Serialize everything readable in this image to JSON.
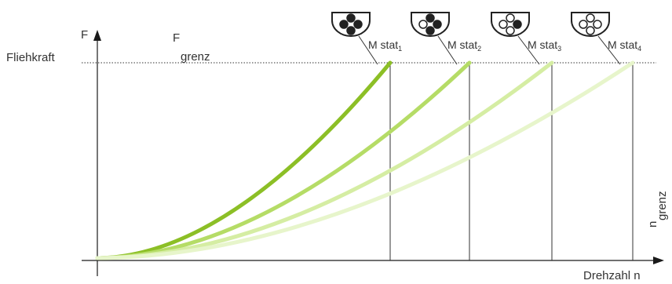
{
  "labels": {
    "y_axis_left": "Fliehkraft",
    "y_axis_symbol": "F",
    "f_limit_main": "F",
    "f_limit_sub": "grenz",
    "x_axis": "Drehzahl n",
    "n_limit_main": "n",
    "n_limit_sub": "grenz"
  },
  "curves": [
    {
      "main": "M stat",
      "sub": "1",
      "color": "#8cbf26",
      "icon_fill": [
        true,
        true,
        true,
        true
      ]
    },
    {
      "main": "M stat",
      "sub": "2",
      "color": "#b5dc66",
      "icon_fill": [
        true,
        false,
        true,
        true
      ]
    },
    {
      "main": "M stat",
      "sub": "3",
      "color": "#d5eda3",
      "icon_fill": [
        false,
        false,
        true,
        false
      ]
    },
    {
      "main": "M stat",
      "sub": "4",
      "color": "#e7f5cb",
      "icon_fill": [
        false,
        false,
        false,
        false
      ]
    }
  ],
  "colors": {
    "axis": "#1a1a1a",
    "text": "#333333",
    "dotted": "#333333"
  }
}
